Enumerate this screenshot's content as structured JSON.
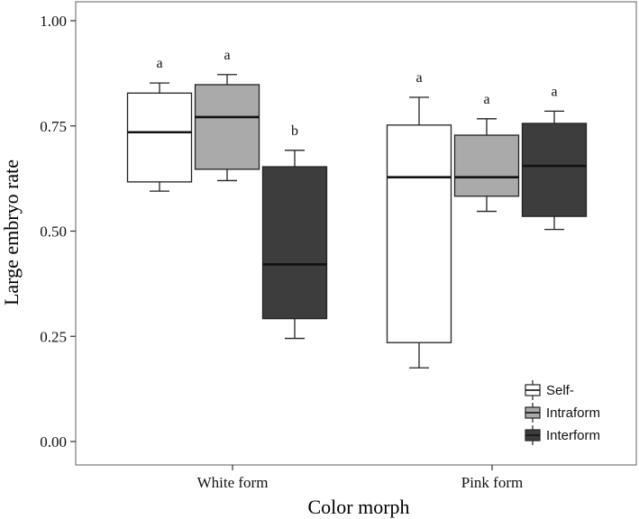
{
  "chart_data": {
    "type": "boxplot",
    "xlabel": "Color morph",
    "ylabel": "Large embryo rate",
    "ylim": [
      0.0,
      1.0
    ],
    "yticks": [
      "0.00",
      "0.25",
      "0.50",
      "0.75",
      "1.00"
    ],
    "grid": false,
    "legend_position": "bottom-right",
    "categories": [
      "White form",
      "Pink form"
    ],
    "series": [
      {
        "name": "Self-",
        "color": "#ffffff",
        "boxes": [
          {
            "category": "White form",
            "whisker_low": 0.595,
            "q1": 0.617,
            "median": 0.735,
            "q3": 0.828,
            "whisker_high": 0.852,
            "label": "a"
          },
          {
            "category": "Pink form",
            "whisker_low": 0.175,
            "q1": 0.235,
            "median": 0.628,
            "q3": 0.752,
            "whisker_high": 0.818,
            "label": "a"
          }
        ]
      },
      {
        "name": "Intraform",
        "color": "#aaaaaa",
        "boxes": [
          {
            "category": "White form",
            "whisker_low": 0.62,
            "q1": 0.647,
            "median": 0.771,
            "q3": 0.848,
            "whisker_high": 0.872,
            "label": "a"
          },
          {
            "category": "Pink form",
            "whisker_low": 0.547,
            "q1": 0.583,
            "median": 0.628,
            "q3": 0.728,
            "whisker_high": 0.767,
            "label": "a"
          }
        ]
      },
      {
        "name": "Interform",
        "color": "#3d3d3d",
        "boxes": [
          {
            "category": "White form",
            "whisker_low": 0.245,
            "q1": 0.292,
            "median": 0.421,
            "q3": 0.653,
            "whisker_high": 0.692,
            "label": "b"
          },
          {
            "category": "Pink form",
            "whisker_low": 0.504,
            "q1": 0.535,
            "median": 0.655,
            "q3": 0.756,
            "whisker_high": 0.785,
            "label": "a"
          }
        ]
      }
    ]
  }
}
